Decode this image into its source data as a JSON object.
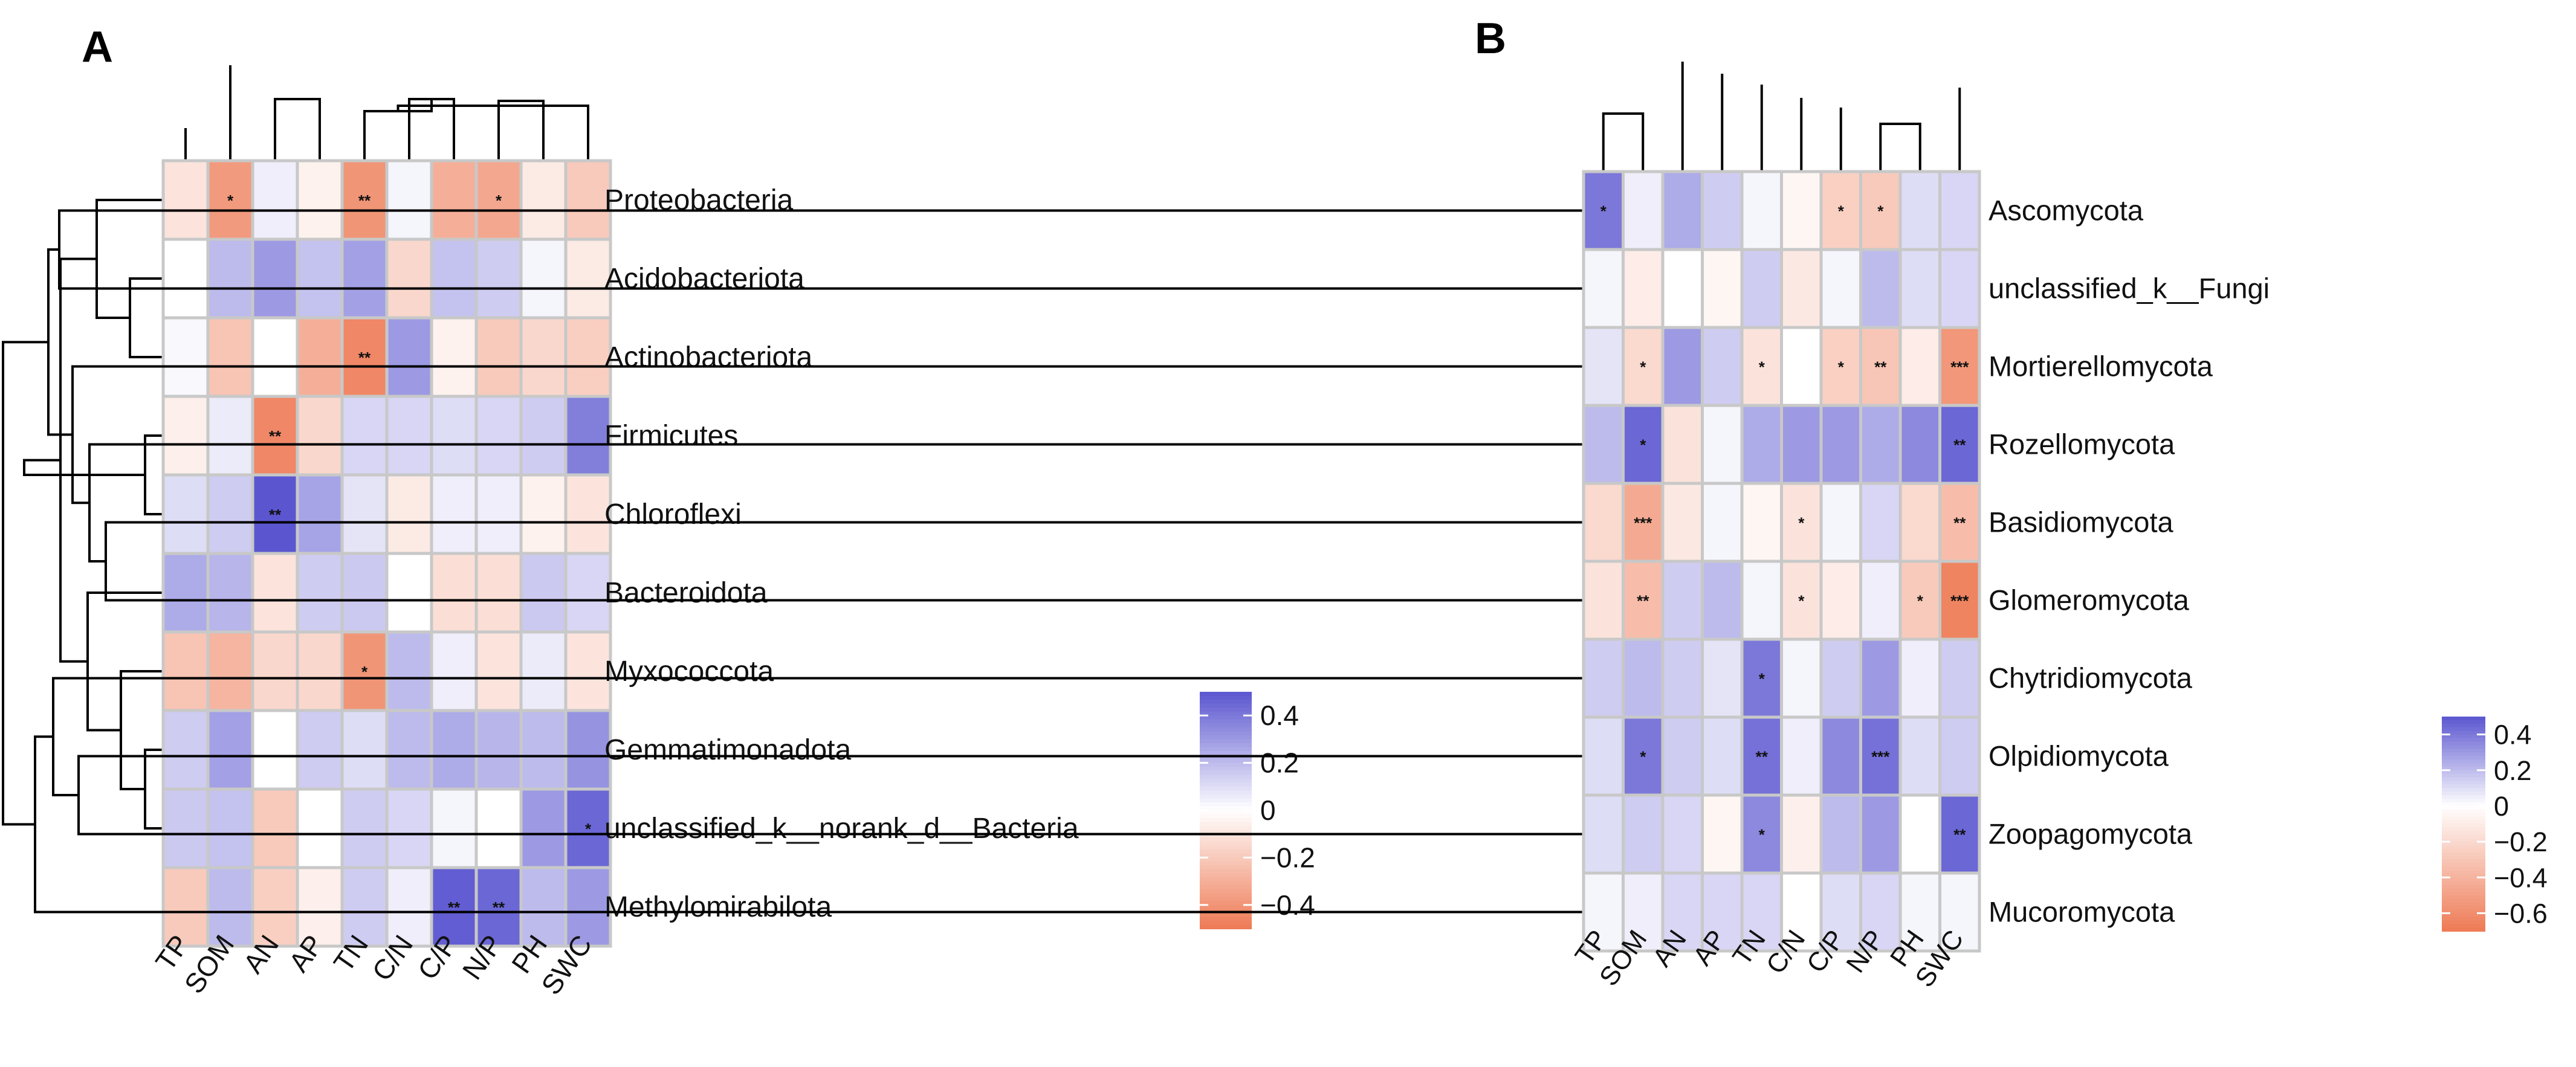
{
  "chart_data": [
    {
      "type": "heatmap",
      "panel_label": "A",
      "columns": [
        "TP",
        "SOM",
        "AN",
        "AP",
        "TN",
        "C/N",
        "C/P",
        "N/P",
        "PH",
        "SWC"
      ],
      "rows": [
        "Proteobacteria",
        "Acidobacteriota",
        "Actinobacteriota",
        "Firmicutes",
        "Chloroflexi",
        "Bacteroidota",
        "Myxococcota",
        "Gemmatimonadota",
        "unclassified_k__norank_d__Bacteria",
        "Methylomirabilota"
      ],
      "values": [
        [
          -0.1,
          -0.38,
          0.05,
          -0.05,
          -0.4,
          0.03,
          -0.3,
          -0.33,
          -0.08,
          -0.2
        ],
        [
          0.0,
          0.2,
          0.3,
          0.18,
          0.28,
          -0.15,
          0.18,
          0.15,
          0.03,
          -0.08
        ],
        [
          0.02,
          -0.22,
          0.0,
          -0.3,
          -0.45,
          0.3,
          -0.05,
          -0.2,
          -0.15,
          -0.18
        ],
        [
          -0.06,
          0.06,
          -0.45,
          -0.15,
          0.12,
          0.12,
          0.1,
          0.12,
          0.15,
          0.38
        ],
        [
          0.1,
          0.15,
          0.5,
          0.27,
          0.08,
          -0.08,
          0.05,
          0.05,
          -0.05,
          -0.1
        ],
        [
          0.25,
          0.22,
          -0.1,
          0.15,
          0.16,
          0.0,
          -0.12,
          -0.12,
          0.16,
          0.12
        ],
        [
          -0.22,
          -0.28,
          -0.15,
          -0.15,
          -0.4,
          0.2,
          0.05,
          -0.1,
          0.06,
          -0.1
        ],
        [
          0.15,
          0.28,
          0.0,
          0.15,
          0.1,
          0.2,
          0.25,
          0.22,
          0.2,
          0.32
        ],
        [
          0.16,
          0.18,
          -0.2,
          0.0,
          0.15,
          0.12,
          0.03,
          0.0,
          0.3,
          0.45
        ],
        [
          -0.2,
          0.2,
          -0.18,
          -0.06,
          0.15,
          0.05,
          0.48,
          0.45,
          0.2,
          0.3
        ]
      ],
      "significance": [
        [
          "",
          "*",
          "",
          "",
          "**",
          "",
          "",
          "*",
          "",
          ""
        ],
        [
          "",
          "",
          "",
          "",
          "",
          "",
          "",
          "",
          "",
          ""
        ],
        [
          "",
          "",
          "",
          "",
          "**",
          "",
          "",
          "",
          "",
          ""
        ],
        [
          "",
          "",
          "**",
          "",
          "",
          "",
          "",
          "",
          "",
          ""
        ],
        [
          "",
          "",
          "**",
          "",
          "",
          "",
          "",
          "",
          "",
          ""
        ],
        [
          "",
          "",
          "",
          "",
          "",
          "",
          "",
          "",
          "",
          ""
        ],
        [
          "",
          "",
          "",
          "",
          "*",
          "",
          "",
          "",
          "",
          ""
        ],
        [
          "",
          "",
          "",
          "",
          "",
          "",
          "",
          "",
          "",
          ""
        ],
        [
          "",
          "",
          "",
          "",
          "",
          "",
          "",
          "",
          "",
          "*"
        ],
        [
          "",
          "",
          "",
          "",
          "",
          "",
          "**",
          "**",
          "",
          ""
        ]
      ],
      "color_range": [
        -0.5,
        0.5
      ],
      "legend_ticks": [
        "0.4",
        "0.2",
        "0",
        "−0.2",
        "−0.4"
      ],
      "legend_values": [
        0.4,
        0.2,
        0,
        -0.2,
        -0.4
      ],
      "legend_range": [
        -0.5,
        0.5
      ],
      "colors": {
        "negative": "#ee7a55",
        "zero": "#ffffff",
        "positive": "#5b56d0",
        "cell_border": "#c8c8c8"
      }
    },
    {
      "type": "heatmap",
      "panel_label": "B",
      "columns": [
        "TP",
        "SOM",
        "AN",
        "AP",
        "TN",
        "C/N",
        "C/P",
        "N/P",
        "PH",
        "SWC"
      ],
      "rows": [
        "Ascomycota",
        "unclassified_k__Fungi",
        "Mortierellomycota",
        "Rozellomycota",
        "Basidiomycota",
        "Glomeromycota",
        "Chytridiomycota",
        "Olpidiomycota",
        "Zoopagomycota",
        "Mucoromycota"
      ],
      "values": [
        [
          0.4,
          0.05,
          0.25,
          0.15,
          0.03,
          -0.05,
          -0.25,
          -0.28,
          0.1,
          0.12
        ],
        [
          0.03,
          -0.1,
          0.0,
          -0.05,
          0.15,
          -0.12,
          0.03,
          0.2,
          0.1,
          0.12
        ],
        [
          0.08,
          -0.2,
          0.3,
          0.15,
          -0.15,
          0.0,
          -0.25,
          -0.3,
          -0.1,
          -0.55
        ],
        [
          0.2,
          0.45,
          -0.15,
          0.03,
          0.25,
          0.3,
          0.3,
          0.25,
          0.35,
          0.45
        ],
        [
          -0.2,
          -0.45,
          -0.12,
          0.03,
          -0.05,
          -0.15,
          0.03,
          0.12,
          -0.2,
          -0.35
        ],
        [
          -0.15,
          -0.35,
          0.15,
          0.2,
          0.03,
          -0.15,
          -0.1,
          0.05,
          -0.28,
          -0.65
        ],
        [
          0.15,
          0.2,
          0.15,
          0.08,
          0.4,
          0.03,
          0.15,
          0.3,
          0.05,
          0.15
        ],
        [
          0.1,
          0.4,
          0.15,
          0.1,
          0.42,
          0.05,
          0.35,
          0.42,
          0.1,
          0.15
        ],
        [
          0.1,
          0.15,
          0.12,
          -0.05,
          0.35,
          -0.08,
          0.2,
          0.3,
          0.0,
          0.45
        ],
        [
          0.03,
          0.05,
          0.12,
          0.12,
          0.12,
          0.0,
          0.1,
          0.12,
          0.03,
          0.03
        ]
      ],
      "significance": [
        [
          "*",
          "",
          "",
          "",
          "",
          "",
          "*",
          "*",
          "",
          ""
        ],
        [
          "",
          "",
          "",
          "",
          "",
          "",
          "",
          "",
          "",
          ""
        ],
        [
          "",
          "*",
          "",
          "",
          "*",
          "",
          "*",
          "**",
          "",
          "***"
        ],
        [
          "",
          "*",
          "",
          "",
          "",
          "",
          "",
          "",
          "",
          "**"
        ],
        [
          "",
          "***",
          "",
          "",
          "",
          "*",
          "",
          "",
          "",
          "**"
        ],
        [
          "",
          "**",
          "",
          "",
          "",
          "*",
          "",
          "",
          "*",
          "***"
        ],
        [
          "",
          "",
          "",
          "",
          "*",
          "",
          "",
          "",
          "",
          ""
        ],
        [
          "",
          "*",
          "",
          "",
          "**",
          "",
          "",
          "***",
          "",
          ""
        ],
        [
          "",
          "",
          "",
          "",
          "*",
          "",
          "",
          "",
          "",
          "**"
        ],
        [
          "",
          "",
          "",
          "",
          "",
          "",
          "",
          "",
          "",
          ""
        ]
      ],
      "color_range": [
        -0.7,
        0.5
      ],
      "legend_ticks": [
        "0.4",
        "0.2",
        "0",
        "−0.2",
        "−0.4",
        "−0.6"
      ],
      "legend_values": [
        0.4,
        0.2,
        0,
        -0.2,
        -0.4,
        -0.6
      ],
      "legend_range": [
        -0.7,
        0.5
      ],
      "colors": {
        "negative": "#ee7a55",
        "zero": "#ffffff",
        "positive": "#5b56d0",
        "cell_border": "#c8c8c8"
      }
    }
  ]
}
